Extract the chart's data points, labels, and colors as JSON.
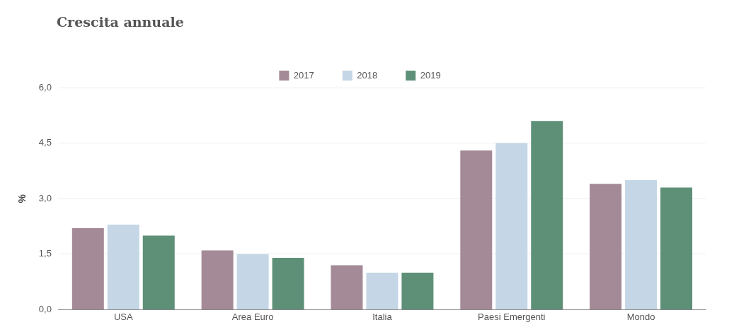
{
  "chart_data": {
    "type": "bar",
    "title": "Crescita annuale",
    "ylabel": "%",
    "categories": [
      "USA",
      "Area Euro",
      "Italia",
      "Paesi Emergenti",
      "Mondo"
    ],
    "series": [
      {
        "name": "2017",
        "color": "#a48a96",
        "values": [
          2.2,
          1.6,
          1.2,
          4.3,
          3.4
        ]
      },
      {
        "name": "2018",
        "color": "#c5d6e6",
        "values": [
          2.3,
          1.5,
          1.0,
          4.5,
          3.5
        ]
      },
      {
        "name": "2019",
        "color": "#5e9078",
        "values": [
          2.0,
          1.4,
          1.0,
          5.1,
          3.3
        ]
      }
    ],
    "ylim": [
      0,
      6
    ],
    "yticks": [
      {
        "value": 0,
        "label": "0,0"
      },
      {
        "value": 1.5,
        "label": "1,5"
      },
      {
        "value": 3,
        "label": "3,0"
      },
      {
        "value": 4.5,
        "label": "4,5"
      },
      {
        "value": 6,
        "label": "6,0"
      }
    ],
    "grid": "y",
    "legend": "top"
  }
}
